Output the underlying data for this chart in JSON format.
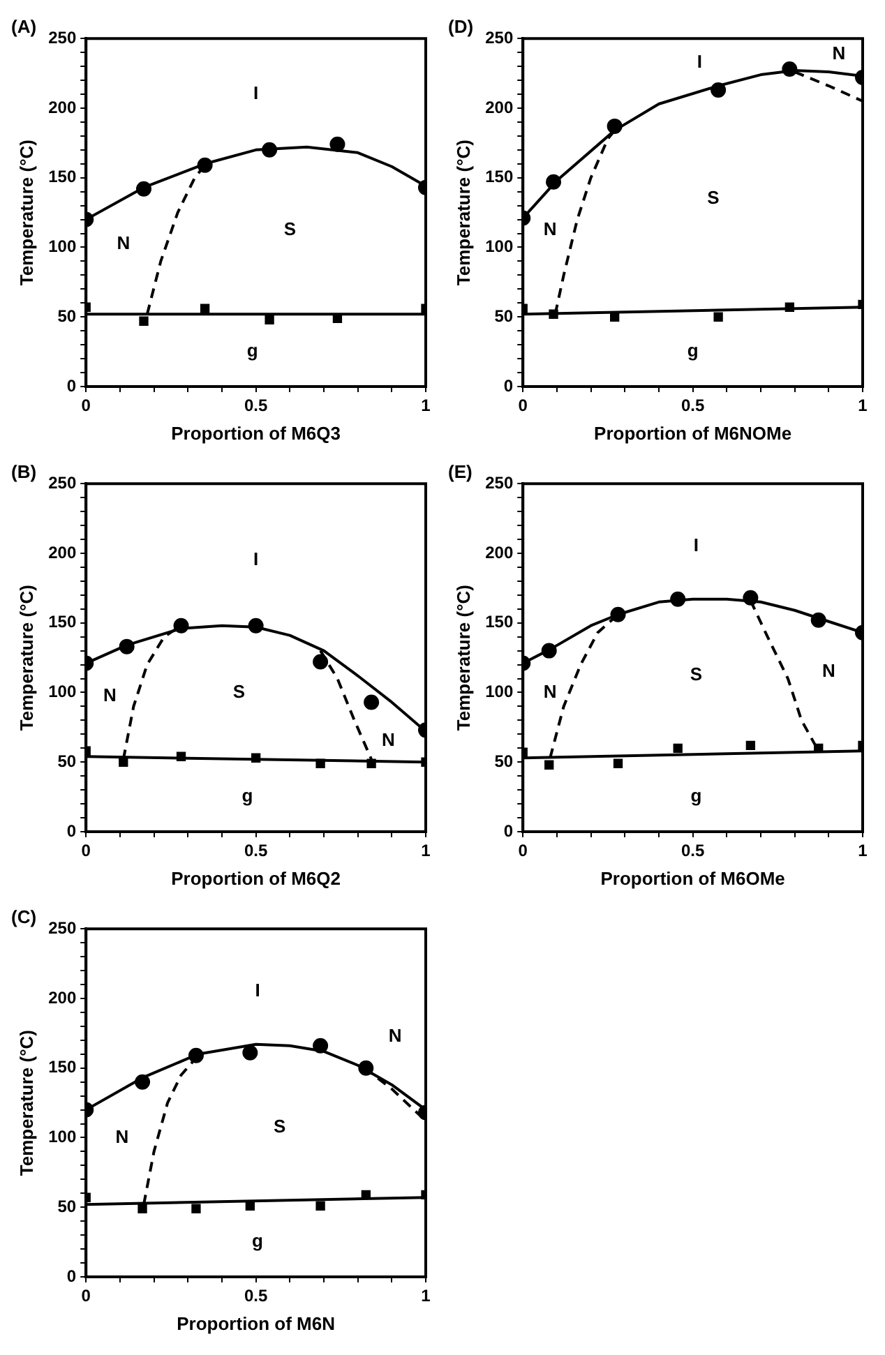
{
  "chart_data": [
    {
      "type": "scatter",
      "title": "(A)",
      "xlabel": "Proportion of M6Q3",
      "ylabel": "Temperature (°C)",
      "xlim": [
        0,
        1
      ],
      "ylim": [
        0,
        250
      ],
      "grid": false,
      "xticks": [
        0,
        {
          "value": 0.1,
          "label": null
        },
        {
          "value": 0.2,
          "label": null
        },
        {
          "value": 0.3,
          "label": null
        },
        {
          "value": 0.4,
          "label": null
        },
        0.5,
        {
          "value": 0.6,
          "label": null
        },
        {
          "value": 0.7,
          "label": null
        },
        {
          "value": 0.8,
          "label": null
        },
        {
          "value": 0.9,
          "label": null
        },
        1
      ],
      "yticks": [
        0,
        {
          "value": 10,
          "label": null
        },
        {
          "value": 20,
          "label": null
        },
        {
          "value": 30,
          "label": null
        },
        {
          "value": 40,
          "label": null
        },
        50,
        {
          "value": 60,
          "label": null
        },
        {
          "value": 70,
          "label": null
        },
        {
          "value": 80,
          "label": null
        },
        {
          "value": 90,
          "label": null
        },
        100,
        {
          "value": 110,
          "label": null
        },
        {
          "value": 120,
          "label": null
        },
        {
          "value": 130,
          "label": null
        },
        {
          "value": 140,
          "label": null
        },
        150,
        {
          "value": 160,
          "label": null
        },
        {
          "value": 170,
          "label": null
        },
        {
          "value": 180,
          "label": null
        },
        {
          "value": 190,
          "label": null
        },
        200,
        {
          "value": 210,
          "label": null
        },
        {
          "value": 220,
          "label": null
        },
        {
          "value": 230,
          "label": null
        },
        {
          "value": 240,
          "label": null
        },
        250
      ],
      "series": [
        {
          "type": "line",
          "marker": "none",
          "line_style": "solid",
          "color": "#000000",
          "x": [
            0,
            0.17,
            0.35,
            0.5,
            0.65,
            0.8,
            0.9,
            1
          ],
          "values": [
            120,
            143,
            160,
            170,
            172,
            168,
            158,
            144
          ]
        },
        {
          "type": "line",
          "marker": "none",
          "line_style": "solid",
          "color": "#000000",
          "x": [
            0,
            1
          ],
          "values": [
            52,
            52
          ]
        },
        {
          "type": "line",
          "marker": "none",
          "line_style": "dashed",
          "color": "#000000",
          "x": [
            0.18,
            0.22,
            0.27,
            0.32,
            0.36
          ],
          "values": [
            52,
            90,
            125,
            150,
            162
          ]
        },
        {
          "type": "scatter",
          "marker": "circle",
          "color": "#000000",
          "x": [
            0,
            0.17,
            0.35,
            0.54,
            0.74,
            1
          ],
          "values": [
            120,
            142,
            159,
            170,
            174,
            143
          ]
        },
        {
          "type": "scatter",
          "marker": "square",
          "color": "#000000",
          "x": [
            0,
            0.17,
            0.35,
            0.54,
            0.74,
            1
          ],
          "values": [
            57,
            47,
            56,
            48,
            49,
            56
          ]
        }
      ],
      "annotations": [
        "I",
        "N",
        "S",
        "g"
      ]
    },
    {
      "type": "scatter",
      "title": "(D)",
      "xlabel": "Proportion of M6NOMe",
      "ylabel": "Temperature (°C)",
      "xlim": [
        0,
        1
      ],
      "ylim": [
        0,
        250
      ],
      "grid": false,
      "xticks": [
        0,
        {
          "value": 0.1,
          "label": null
        },
        {
          "value": 0.2,
          "label": null
        },
        {
          "value": 0.3,
          "label": null
        },
        {
          "value": 0.4,
          "label": null
        },
        0.5,
        {
          "value": 0.6,
          "label": null
        },
        {
          "value": 0.7,
          "label": null
        },
        {
          "value": 0.8,
          "label": null
        },
        {
          "value": 0.9,
          "label": null
        },
        1
      ],
      "yticks": [
        0,
        {
          "value": 10,
          "label": null
        },
        {
          "value": 20,
          "label": null
        },
        {
          "value": 30,
          "label": null
        },
        {
          "value": 40,
          "label": null
        },
        50,
        {
          "value": 60,
          "label": null
        },
        {
          "value": 70,
          "label": null
        },
        {
          "value": 80,
          "label": null
        },
        {
          "value": 90,
          "label": null
        },
        100,
        {
          "value": 110,
          "label": null
        },
        {
          "value": 120,
          "label": null
        },
        {
          "value": 130,
          "label": null
        },
        {
          "value": 140,
          "label": null
        },
        150,
        {
          "value": 160,
          "label": null
        },
        {
          "value": 170,
          "label": null
        },
        {
          "value": 180,
          "label": null
        },
        {
          "value": 190,
          "label": null
        },
        200,
        {
          "value": 210,
          "label": null
        },
        {
          "value": 220,
          "label": null
        },
        {
          "value": 230,
          "label": null
        },
        {
          "value": 240,
          "label": null
        },
        250
      ],
      "series": [
        {
          "type": "line",
          "marker": "none",
          "line_style": "solid",
          "color": "#000000",
          "x": [
            0,
            0.1,
            0.27,
            0.4,
            0.575,
            0.7,
            0.8,
            0.9,
            1
          ],
          "values": [
            121,
            148,
            184,
            203,
            216,
            224,
            227,
            226,
            223
          ]
        },
        {
          "type": "line",
          "marker": "none",
          "line_style": "solid",
          "color": "#000000",
          "x": [
            0,
            1
          ],
          "values": [
            52,
            57
          ]
        },
        {
          "type": "line",
          "marker": "none",
          "line_style": "dashed",
          "color": "#000000",
          "x": [
            0.095,
            0.12,
            0.16,
            0.2,
            0.25,
            0.27
          ],
          "values": [
            52,
            80,
            120,
            150,
            178,
            184
          ]
        },
        {
          "type": "line",
          "marker": "none",
          "line_style": "dashed",
          "color": "#000000",
          "x": [
            0.8,
            0.9,
            1
          ],
          "values": [
            226,
            216,
            205
          ]
        },
        {
          "type": "scatter",
          "marker": "circle",
          "color": "#000000",
          "x": [
            0,
            0.09,
            0.27,
            0.575,
            0.785,
            1
          ],
          "values": [
            121,
            147,
            187,
            213,
            228,
            222
          ]
        },
        {
          "type": "scatter",
          "marker": "square",
          "color": "#000000",
          "x": [
            0,
            0.09,
            0.27,
            0.575,
            0.785,
            1
          ],
          "values": [
            56,
            52,
            50,
            50,
            57,
            59
          ]
        }
      ],
      "annotations": [
        "I",
        "N",
        "N",
        "S",
        "g"
      ]
    },
    {
      "type": "scatter",
      "title": "(B)",
      "xlabel": "Proportion of M6Q2",
      "ylabel": "Temperature (°C)",
      "xlim": [
        0,
        1
      ],
      "ylim": [
        0,
        250
      ],
      "grid": false,
      "xticks": [
        0,
        {
          "value": 0.1,
          "label": null
        },
        {
          "value": 0.2,
          "label": null
        },
        {
          "value": 0.3,
          "label": null
        },
        {
          "value": 0.4,
          "label": null
        },
        0.5,
        {
          "value": 0.6,
          "label": null
        },
        {
          "value": 0.7,
          "label": null
        },
        {
          "value": 0.8,
          "label": null
        },
        {
          "value": 0.9,
          "label": null
        },
        1
      ],
      "yticks": [
        0,
        {
          "value": 10,
          "label": null
        },
        {
          "value": 20,
          "label": null
        },
        {
          "value": 30,
          "label": null
        },
        {
          "value": 40,
          "label": null
        },
        50,
        {
          "value": 60,
          "label": null
        },
        {
          "value": 70,
          "label": null
        },
        {
          "value": 80,
          "label": null
        },
        {
          "value": 90,
          "label": null
        },
        100,
        {
          "value": 110,
          "label": null
        },
        {
          "value": 120,
          "label": null
        },
        {
          "value": 130,
          "label": null
        },
        {
          "value": 140,
          "label": null
        },
        150,
        {
          "value": 160,
          "label": null
        },
        {
          "value": 170,
          "label": null
        },
        {
          "value": 180,
          "label": null
        },
        {
          "value": 190,
          "label": null
        },
        200,
        {
          "value": 210,
          "label": null
        },
        {
          "value": 220,
          "label": null
        },
        {
          "value": 230,
          "label": null
        },
        {
          "value": 240,
          "label": null
        },
        250
      ],
      "series": [
        {
          "type": "line",
          "marker": "none",
          "line_style": "solid",
          "color": "#000000",
          "x": [
            0,
            0.12,
            0.28,
            0.4,
            0.5,
            0.6,
            0.7,
            0.8,
            0.9,
            1
          ],
          "values": [
            121,
            134,
            146,
            148,
            147,
            141,
            130,
            112,
            93,
            72
          ]
        },
        {
          "type": "line",
          "marker": "none",
          "line_style": "solid",
          "color": "#000000",
          "x": [
            0,
            1
          ],
          "values": [
            54,
            50
          ]
        },
        {
          "type": "line",
          "marker": "none",
          "line_style": "dashed",
          "color": "#000000",
          "x": [
            0.11,
            0.14,
            0.18,
            0.23,
            0.28
          ],
          "values": [
            52,
            90,
            120,
            140,
            148
          ]
        },
        {
          "type": "line",
          "marker": "none",
          "line_style": "dashed",
          "color": "#000000",
          "x": [
            0.69,
            0.74,
            0.79,
            0.84
          ],
          "values": [
            130,
            110,
            80,
            52
          ]
        },
        {
          "type": "scatter",
          "marker": "circle",
          "color": "#000000",
          "x": [
            0,
            0.12,
            0.28,
            0.5,
            0.69,
            0.84,
            1
          ],
          "values": [
            121,
            133,
            148,
            148,
            122,
            93,
            73
          ]
        },
        {
          "type": "scatter",
          "marker": "square",
          "color": "#000000",
          "x": [
            0,
            0.11,
            0.28,
            0.5,
            0.69,
            0.84,
            1
          ],
          "values": [
            58,
            50,
            54,
            53,
            49,
            49,
            50
          ]
        }
      ],
      "annotations": [
        "I",
        "N",
        "S",
        "N",
        "g"
      ]
    },
    {
      "type": "scatter",
      "title": "(E)",
      "xlabel": "Proportion of M6OMe",
      "ylabel": "Temperature (°C)",
      "xlim": [
        0,
        1
      ],
      "ylim": [
        0,
        250
      ],
      "grid": false,
      "xticks": [
        0,
        {
          "value": 0.1,
          "label": null
        },
        {
          "value": 0.2,
          "label": null
        },
        {
          "value": 0.3,
          "label": null
        },
        {
          "value": 0.4,
          "label": null
        },
        0.5,
        {
          "value": 0.6,
          "label": null
        },
        {
          "value": 0.7,
          "label": null
        },
        {
          "value": 0.8,
          "label": null
        },
        {
          "value": 0.9,
          "label": null
        },
        1
      ],
      "yticks": [
        0,
        {
          "value": 10,
          "label": null
        },
        {
          "value": 20,
          "label": null
        },
        {
          "value": 30,
          "label": null
        },
        {
          "value": 40,
          "label": null
        },
        50,
        {
          "value": 60,
          "label": null
        },
        {
          "value": 70,
          "label": null
        },
        {
          "value": 80,
          "label": null
        },
        {
          "value": 90,
          "label": null
        },
        100,
        {
          "value": 110,
          "label": null
        },
        {
          "value": 120,
          "label": null
        },
        {
          "value": 130,
          "label": null
        },
        {
          "value": 140,
          "label": null
        },
        150,
        {
          "value": 160,
          "label": null
        },
        {
          "value": 170,
          "label": null
        },
        {
          "value": 180,
          "label": null
        },
        {
          "value": 190,
          "label": null
        },
        200,
        {
          "value": 210,
          "label": null
        },
        {
          "value": 220,
          "label": null
        },
        {
          "value": 230,
          "label": null
        },
        {
          "value": 240,
          "label": null
        },
        250
      ],
      "series": [
        {
          "type": "line",
          "marker": "none",
          "line_style": "solid",
          "color": "#000000",
          "x": [
            0,
            0.08,
            0.2,
            0.28,
            0.4,
            0.5,
            0.6,
            0.7,
            0.8,
            0.9,
            1
          ],
          "values": [
            121,
            131,
            148,
            156,
            165,
            167,
            167,
            165,
            159,
            151,
            143
          ]
        },
        {
          "type": "line",
          "marker": "none",
          "line_style": "solid",
          "color": "#000000",
          "x": [
            0,
            1
          ],
          "values": [
            53,
            58
          ]
        },
        {
          "type": "line",
          "marker": "none",
          "line_style": "dashed",
          "color": "#000000",
          "x": [
            0.08,
            0.12,
            0.17,
            0.22,
            0.28
          ],
          "values": [
            53,
            90,
            120,
            143,
            156
          ]
        },
        {
          "type": "line",
          "marker": "none",
          "line_style": "dashed",
          "color": "#000000",
          "x": [
            0.67,
            0.72,
            0.78,
            0.82,
            0.87
          ],
          "values": [
            166,
            140,
            110,
            80,
            58
          ]
        },
        {
          "type": "scatter",
          "marker": "circle",
          "color": "#000000",
          "x": [
            0,
            0.077,
            0.28,
            0.456,
            0.67,
            0.87,
            1
          ],
          "values": [
            121,
            130,
            156,
            167,
            168,
            152,
            143
          ]
        },
        {
          "type": "scatter",
          "marker": "square",
          "color": "#000000",
          "x": [
            0,
            0.077,
            0.28,
            0.456,
            0.67,
            0.87,
            1
          ],
          "values": [
            57,
            48,
            49,
            60,
            62,
            60,
            62
          ]
        }
      ],
      "annotations": [
        "I",
        "N",
        "S",
        "N",
        "g"
      ]
    },
    {
      "type": "scatter",
      "title": "(C)",
      "xlabel": "Proportion of M6N",
      "ylabel": "Temperature (°C)",
      "xlim": [
        0,
        1
      ],
      "ylim": [
        0,
        250
      ],
      "grid": false,
      "xticks": [
        0,
        {
          "value": 0.1,
          "label": null
        },
        {
          "value": 0.2,
          "label": null
        },
        {
          "value": 0.3,
          "label": null
        },
        {
          "value": 0.4,
          "label": null
        },
        0.5,
        {
          "value": 0.6,
          "label": null
        },
        {
          "value": 0.7,
          "label": null
        },
        {
          "value": 0.8,
          "label": null
        },
        {
          "value": 0.9,
          "label": null
        },
        1
      ],
      "yticks": [
        0,
        {
          "value": 10,
          "label": null
        },
        {
          "value": 20,
          "label": null
        },
        {
          "value": 30,
          "label": null
        },
        {
          "value": 40,
          "label": null
        },
        50,
        {
          "value": 60,
          "label": null
        },
        {
          "value": 70,
          "label": null
        },
        {
          "value": 80,
          "label": null
        },
        {
          "value": 90,
          "label": null
        },
        100,
        {
          "value": 110,
          "label": null
        },
        {
          "value": 120,
          "label": null
        },
        {
          "value": 130,
          "label": null
        },
        {
          "value": 140,
          "label": null
        },
        150,
        {
          "value": 160,
          "label": null
        },
        {
          "value": 170,
          "label": null
        },
        {
          "value": 180,
          "label": null
        },
        {
          "value": 190,
          "label": null
        },
        200,
        {
          "value": 210,
          "label": null
        },
        {
          "value": 220,
          "label": null
        },
        {
          "value": 230,
          "label": null
        },
        {
          "value": 240,
          "label": null
        },
        250
      ],
      "series": [
        {
          "type": "line",
          "marker": "none",
          "line_style": "solid",
          "color": "#000000",
          "x": [
            0,
            0.166,
            0.33,
            0.5,
            0.6,
            0.7,
            0.8,
            0.9,
            1
          ],
          "values": [
            120,
            143,
            160,
            167,
            166,
            162,
            152,
            138,
            120
          ]
        },
        {
          "type": "line",
          "marker": "none",
          "line_style": "solid",
          "color": "#000000",
          "x": [
            0,
            1
          ],
          "values": [
            52,
            57
          ]
        },
        {
          "type": "line",
          "marker": "none",
          "line_style": "dashed",
          "color": "#000000",
          "x": [
            0.17,
            0.2,
            0.24,
            0.28,
            0.33
          ],
          "values": [
            52,
            90,
            125,
            145,
            159
          ]
        },
        {
          "type": "line",
          "marker": "none",
          "line_style": "dashed",
          "color": "#000000",
          "x": [
            0.82,
            0.9,
            1
          ],
          "values": [
            150,
            135,
            112
          ]
        },
        {
          "type": "scatter",
          "marker": "circle",
          "color": "#000000",
          "x": [
            0,
            0.166,
            0.324,
            0.483,
            0.69,
            0.824,
            1
          ],
          "values": [
            120,
            140,
            159,
            161,
            166,
            150,
            118
          ]
        },
        {
          "type": "scatter",
          "marker": "square",
          "color": "#000000",
          "x": [
            0,
            0.166,
            0.324,
            0.483,
            0.69,
            0.824,
            1
          ],
          "values": [
            57,
            49,
            49,
            51,
            51,
            59,
            59
          ]
        }
      ],
      "annotations": [
        "I",
        "N",
        "N",
        "S",
        "g"
      ]
    }
  ]
}
